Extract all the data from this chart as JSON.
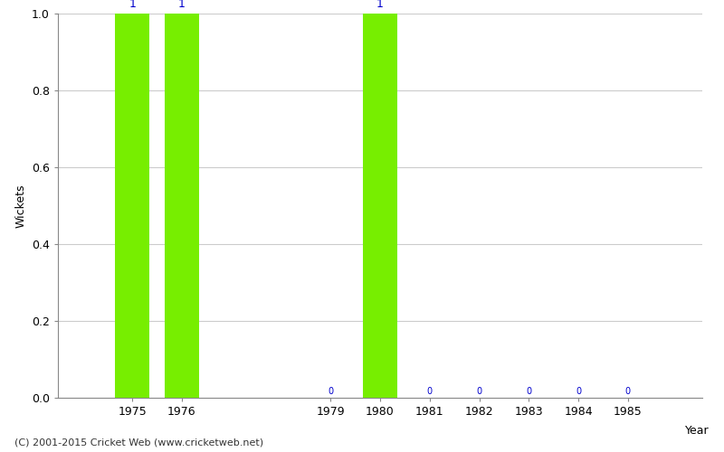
{
  "years": [
    1975,
    1976,
    1979,
    1980,
    1981,
    1982,
    1983,
    1984,
    1985
  ],
  "wickets": [
    1,
    1,
    0,
    1,
    0,
    0,
    0,
    0,
    0
  ],
  "bar_color": "#77ee00",
  "label_color": "#0000cc",
  "zero_label_color": "#0000cc",
  "ylabel": "Wickets",
  "xlabel": "Year",
  "ylim": [
    0.0,
    1.0
  ],
  "yticks": [
    0.0,
    0.2,
    0.4,
    0.6,
    0.8,
    1.0
  ],
  "background_color": "#ffffff",
  "grid_color": "#cccccc",
  "footer": "(C) 2001-2015 Cricket Web (www.cricketweb.net)",
  "bar_width": 0.7,
  "xlim_left": 1973.5,
  "xlim_right": 1986.5
}
